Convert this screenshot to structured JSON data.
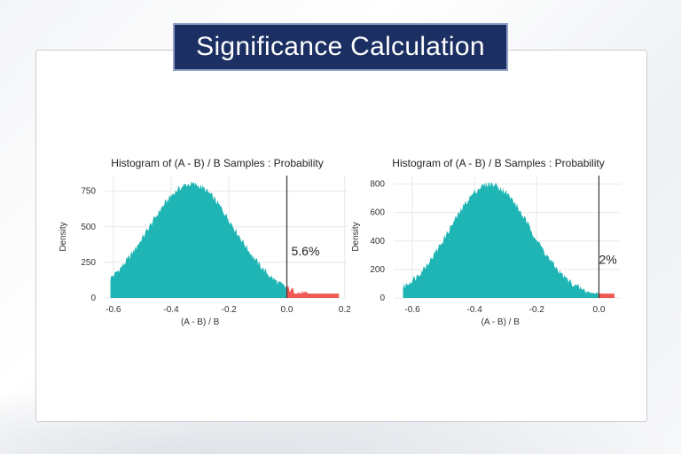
{
  "page": {
    "title": "Significance Calculation"
  },
  "colors": {
    "teal": "#1fb5b5",
    "red": "#ef5a54",
    "banner": "#1b2f63",
    "grid": "#e8e8e8"
  },
  "chart_data": [
    {
      "type": "area",
      "title": "Histogram of (A - B) / B Samples : Probability",
      "xlabel": "(A - B) / B",
      "ylabel": "Density",
      "xlim": [
        -0.63,
        0.21
      ],
      "ylim": [
        0,
        860
      ],
      "xticks": [
        -0.6,
        -0.4,
        -0.2,
        0.0,
        0.2
      ],
      "xtick_labels": [
        "-0.6",
        "-0.4",
        "-0.2",
        "0.0",
        "0.2"
      ],
      "yticks": [
        0,
        250,
        500,
        750
      ],
      "ytick_labels": [
        "0",
        "250",
        "500",
        "750"
      ],
      "grid": true,
      "threshold_x": 0.0,
      "annotation": "5.6%",
      "distribution": {
        "mean": -0.33,
        "sd": 0.15,
        "peak": 800,
        "x_start": -0.61,
        "x_end": 0.18
      },
      "series": [
        {
          "label": "below_threshold",
          "color": "#1fb5b5"
        },
        {
          "label": "above_threshold",
          "color": "#ef5a54"
        }
      ]
    },
    {
      "type": "area",
      "title": "Histogram of (A - B) / B Samples : Probability",
      "xlabel": "(A - B) / B",
      "ylabel": "Density",
      "xlim": [
        -0.66,
        0.07
      ],
      "ylim": [
        0,
        860
      ],
      "xticks": [
        -0.6,
        -0.4,
        -0.2,
        0.0
      ],
      "xtick_labels": [
        "-0.6",
        "-0.4",
        "-0.2",
        "0.0"
      ],
      "yticks": [
        0,
        200,
        400,
        600,
        800
      ],
      "ytick_labels": [
        "0",
        "200",
        "400",
        "600",
        "800"
      ],
      "grid": true,
      "threshold_x": 0.0,
      "annotation": "2%",
      "distribution": {
        "mean": -0.35,
        "sd": 0.13,
        "peak": 800,
        "x_start": -0.63,
        "x_end": 0.05
      },
      "series": [
        {
          "label": "below_threshold",
          "color": "#1fb5b5"
        },
        {
          "label": "above_threshold",
          "color": "#ef5a54"
        }
      ]
    }
  ]
}
